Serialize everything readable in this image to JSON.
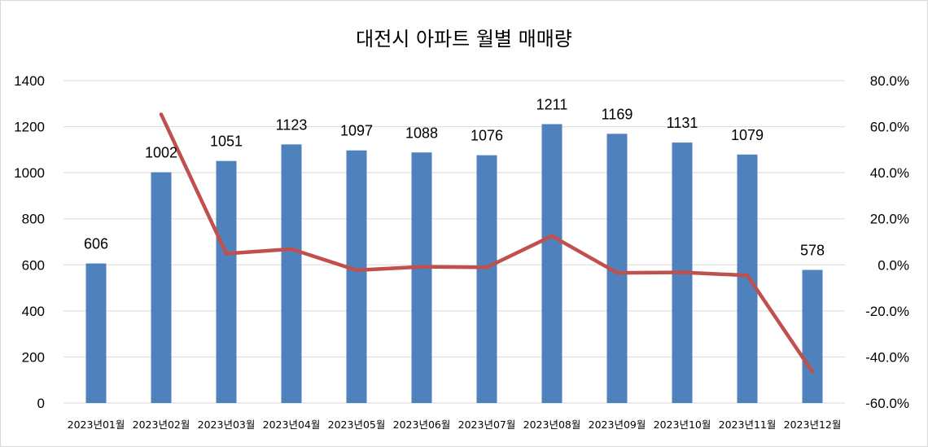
{
  "chart_data": {
    "type": "bar",
    "title": "대전시 아파트 월별 매매량",
    "categories": [
      "2023년01월",
      "2023년02월",
      "2023년03월",
      "2023년04월",
      "2023년05월",
      "2023년06월",
      "2023년07월",
      "2023년08월",
      "2023년09월",
      "2023년10월",
      "2023년11월",
      "2023년12월"
    ],
    "series": [
      {
        "type": "bar",
        "values": [
          606,
          1002,
          1051,
          1123,
          1097,
          1088,
          1076,
          1211,
          1169,
          1131,
          1079,
          578
        ],
        "color": "#4f81bd",
        "data_labels": true
      },
      {
        "type": "line",
        "axis": "secondary",
        "values": [
          null,
          0.6535,
          0.0489,
          0.0685,
          -0.0232,
          -0.0082,
          -0.011,
          0.1255,
          -0.0347,
          -0.0325,
          -0.046,
          -0.4643
        ],
        "color": "#c0504d"
      }
    ],
    "y_axis": {
      "min": 0,
      "max": 1400,
      "step": 200,
      "ticks": [
        "0",
        "200",
        "400",
        "600",
        "800",
        "1000",
        "1200",
        "1400"
      ]
    },
    "y2_axis": {
      "min": -0.6,
      "max": 0.8,
      "step": 0.2,
      "ticks": [
        "-60.0%",
        "-40.0%",
        "-20.0%",
        "0.0%",
        "20.0%",
        "40.0%",
        "60.0%",
        "80.0%"
      ]
    },
    "grid": true,
    "legend": "none"
  }
}
